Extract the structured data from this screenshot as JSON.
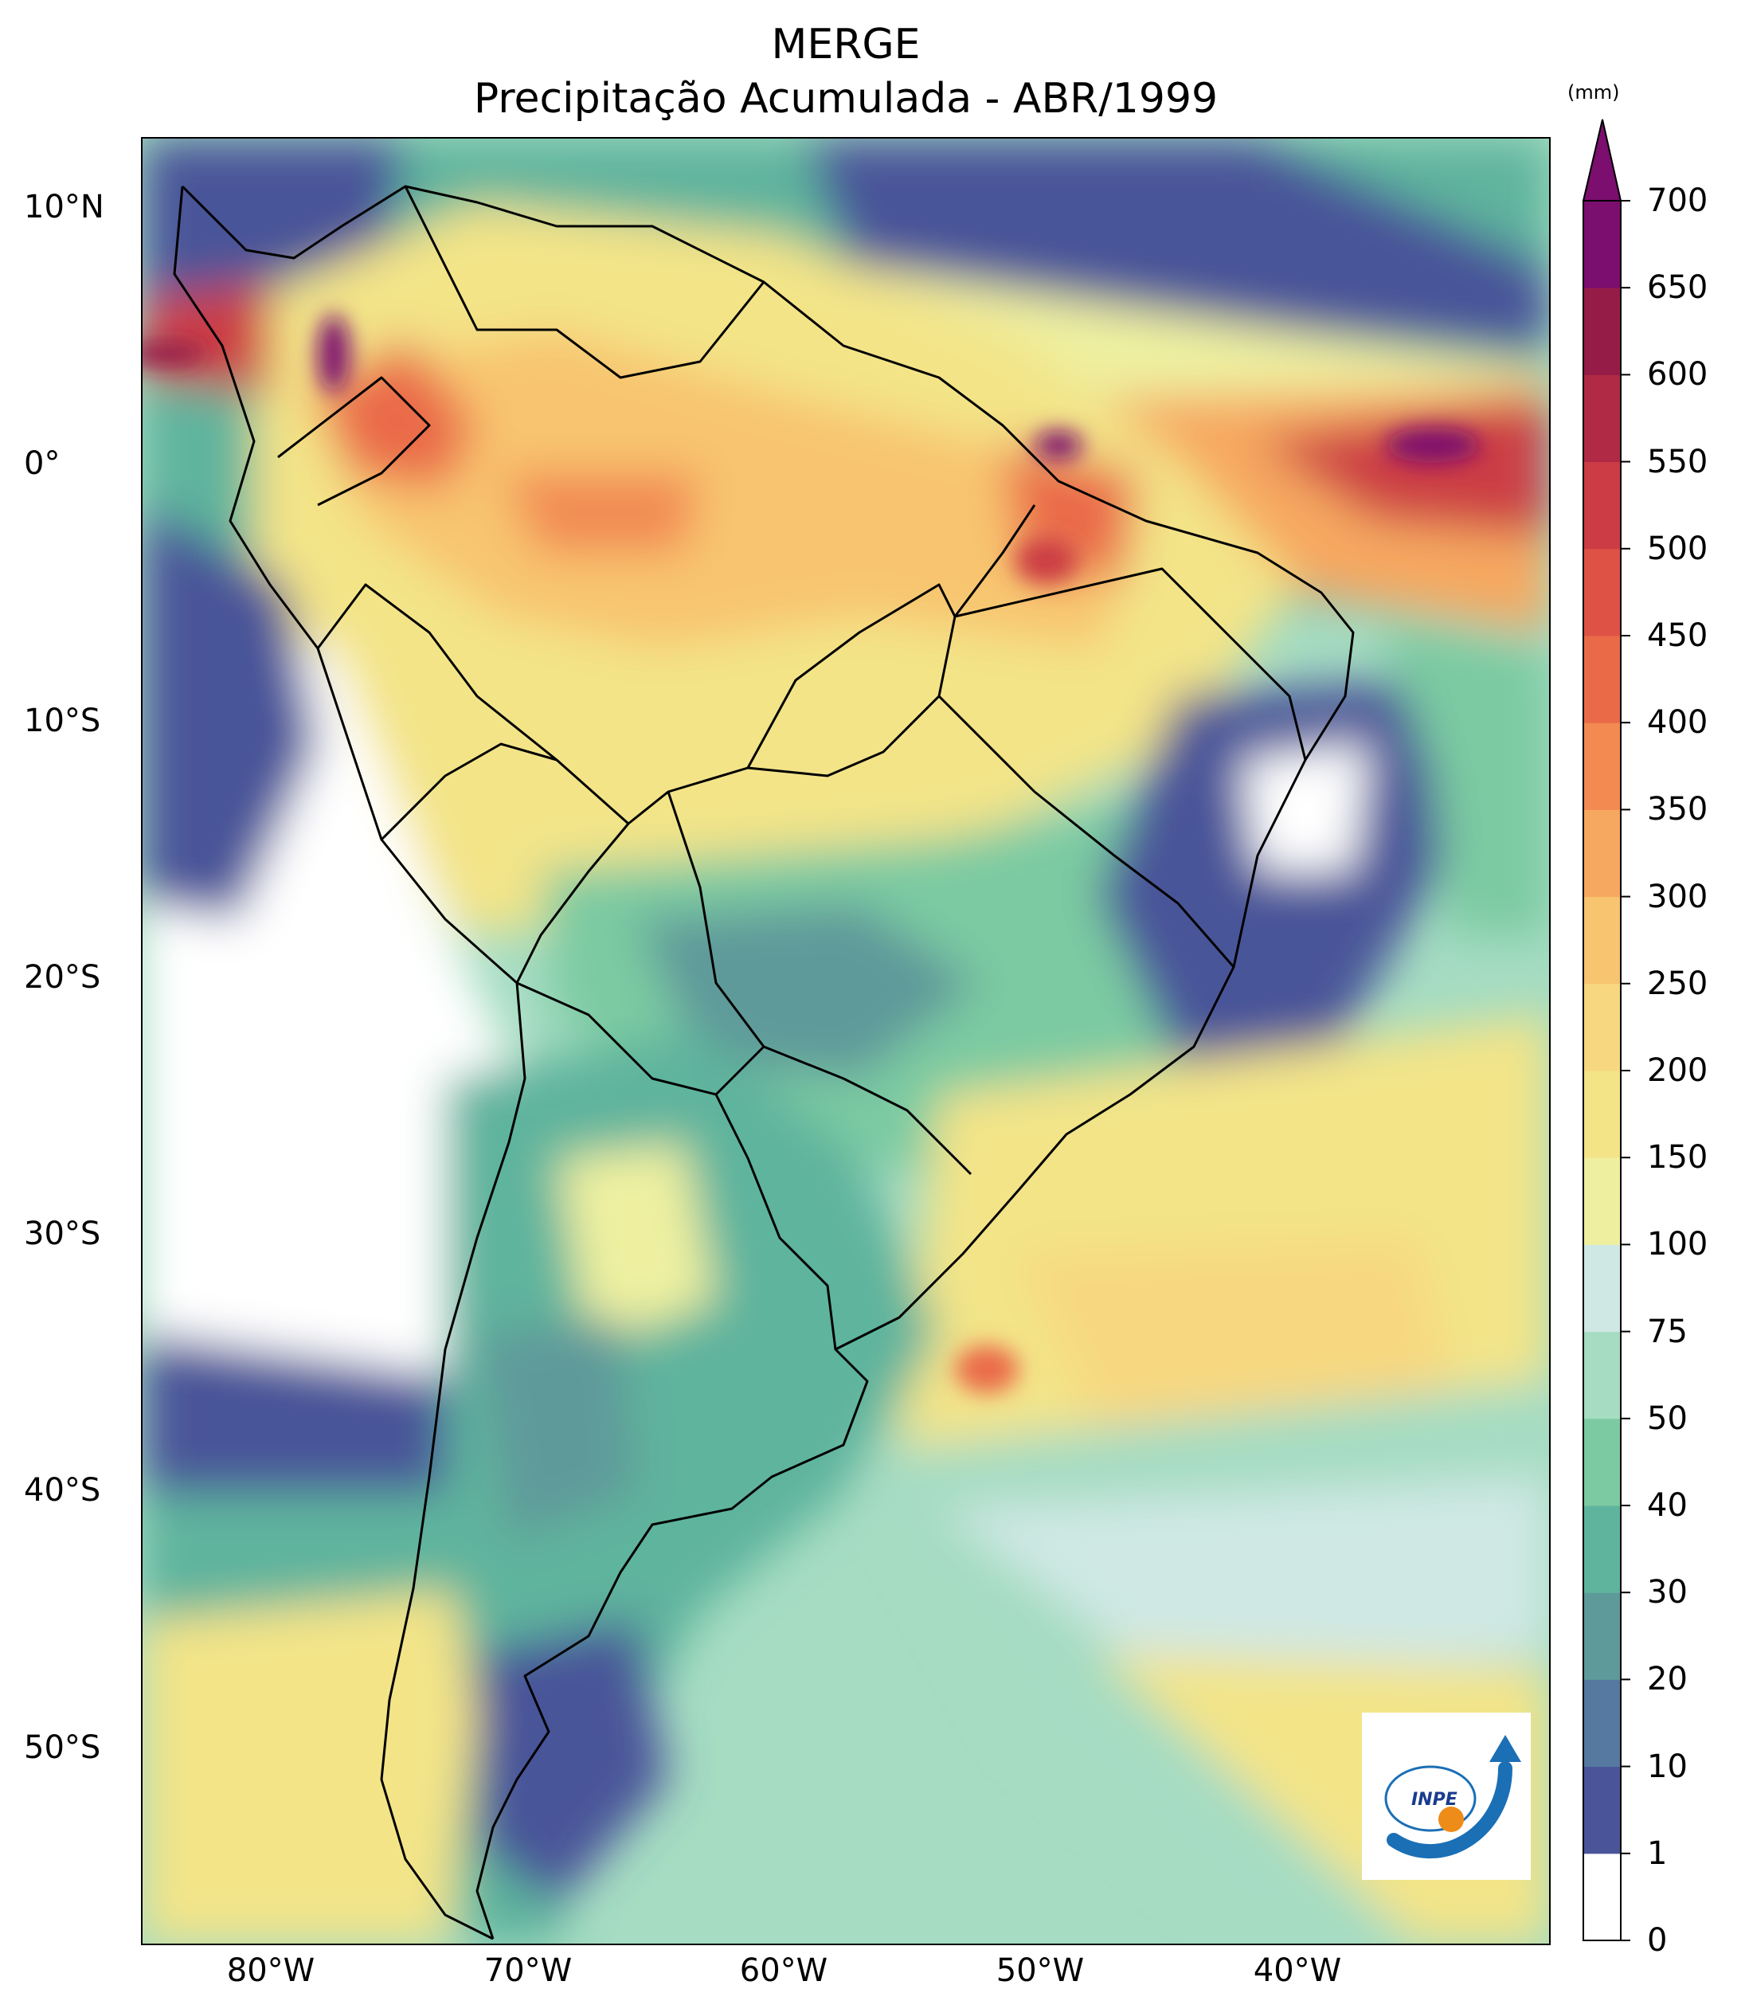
{
  "header": {
    "title": "MERGE",
    "subtitle": "Precipitação Acumulada - ABR/1999"
  },
  "axes": {
    "lat_labels": [
      "10°N",
      "0°",
      "10°S",
      "20°S",
      "30°S",
      "40°S",
      "50°S"
    ],
    "lon_labels": [
      "80°W",
      "70°W",
      "60°W",
      "50°W",
      "40°W"
    ]
  },
  "colorbar": {
    "unit": "(mm)",
    "levels": [
      "0",
      "1",
      "10",
      "20",
      "30",
      "40",
      "50",
      "75",
      "100",
      "150",
      "200",
      "250",
      "300",
      "350",
      "400",
      "450",
      "500",
      "550",
      "600",
      "650",
      "700"
    ],
    "colors": [
      "#ffffff",
      "#4a5599",
      "#5579a1",
      "#5e9a9a",
      "#5fb49d",
      "#7ccaa2",
      "#a5dcc2",
      "#cfe8e4",
      "#eef0a0",
      "#f3e488",
      "#f7d880",
      "#f8c470",
      "#f6a860",
      "#f28a52",
      "#ea6a48",
      "#de5245",
      "#cc3c44",
      "#b02a45",
      "#961c48",
      "#7b0e6e"
    ]
  },
  "logo": {
    "text": "INPE"
  }
}
